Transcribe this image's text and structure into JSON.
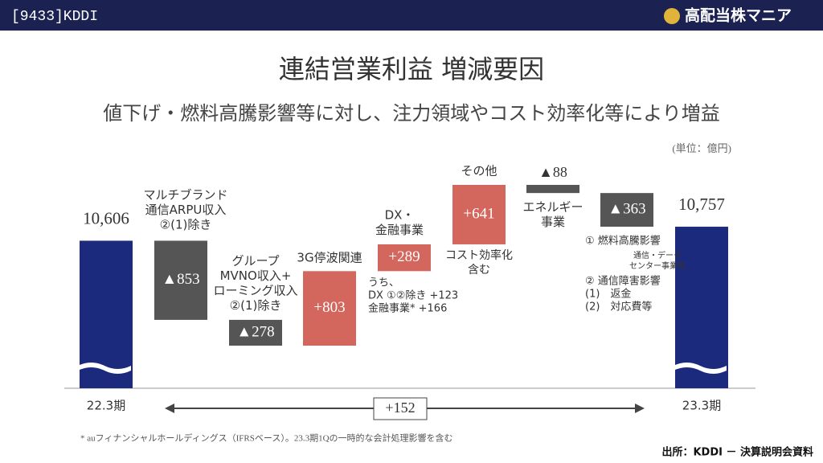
{
  "header": {
    "ticker": "[9433]KDDI",
    "brand": "高配当株マニア"
  },
  "chart_data": {
    "type": "waterfall",
    "title": "連結営業利益 増減要因",
    "subtitle": "値下げ・燃料高騰影響等に対し、注力領域やコスト効率化等により増益",
    "unit_note": "(単位：億円)",
    "categories": [
      [
        "22.3期"
      ],
      [
        "マルチブランド",
        "通信ARPU収入",
        "②(1)除き"
      ],
      [
        "グループ",
        "MVNO収入+",
        "ローミング収入",
        "②(1)除き"
      ],
      [
        "3G停波関連"
      ],
      [
        "DX・",
        "金融事業"
      ],
      [
        "その他"
      ],
      [
        "エネルギー",
        "事業"
      ],
      null,
      [
        "23.3期"
      ]
    ],
    "measure": [
      "absolute",
      "relative",
      "relative",
      "relative",
      "relative",
      "relative",
      "relative",
      "relative",
      "absolute"
    ],
    "values": [
      10606,
      -853,
      -278,
      803,
      289,
      641,
      -88,
      -363,
      10757
    ],
    "value_labels": [
      "10,606",
      "▲853",
      "▲278",
      "+803",
      "+289",
      "+641",
      "▲88",
      "▲363",
      "10,757"
    ],
    "colors": {
      "total": "#1c2a7e",
      "increase": "#d4675d",
      "decrease": "#555555"
    },
    "notes": [
      [
        "うち、",
        "DX ①②除き +123",
        "金融事業* +166"
      ],
      [
        "コスト効率化",
        "含む"
      ],
      [
        "① 燃料高騰影響"
      ],
      [
        "通信・データ",
        "センター事業等"
      ],
      [
        "② 通信障害影響",
        "(1)　返金",
        "(2)　対応費等"
      ]
    ],
    "difference_label": "+152",
    "footnote": "* auフィナンシャルホールディングス（IFRSベース）。23.3期1Qの一時的な会計処理影響を含む"
  },
  "source": "出所：KDDI － 決算説明会資料"
}
